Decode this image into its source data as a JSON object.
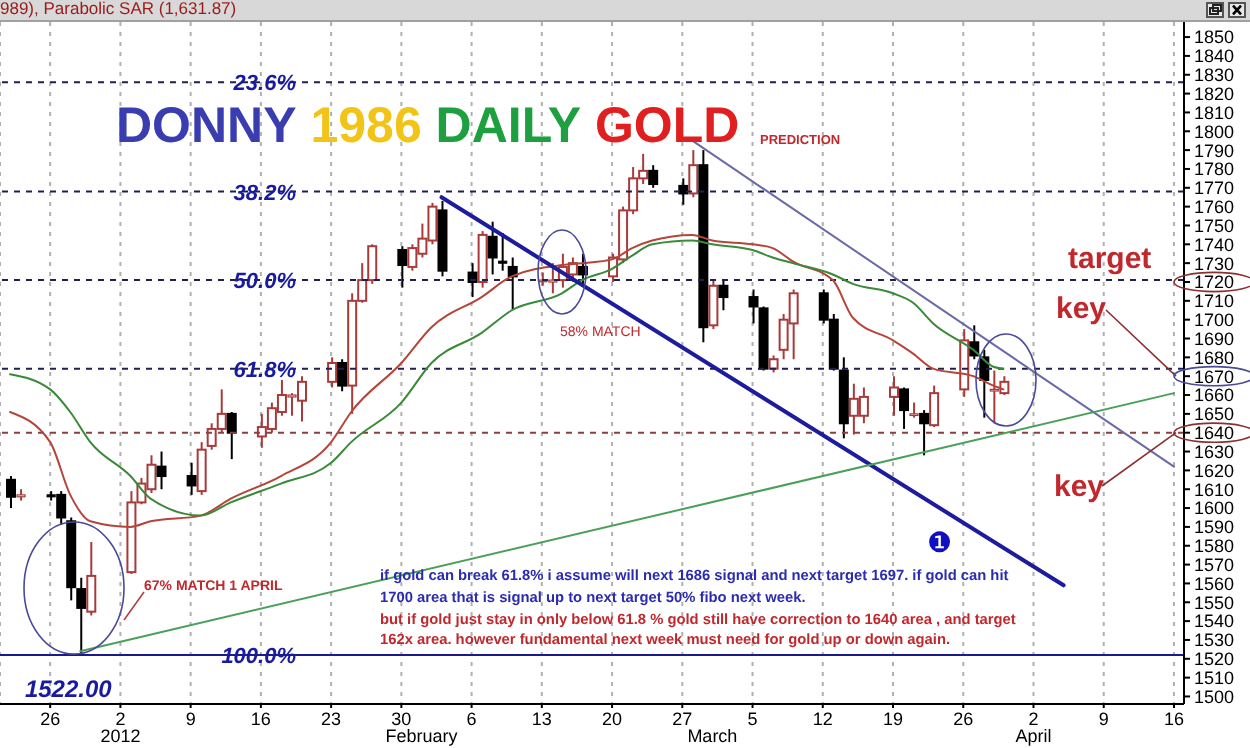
{
  "chart_data": {
    "type": "candlestick",
    "title": "DONNY 1986 DAILY GOLD",
    "annotations": [
      "989), Parabolic SAR (1,631.87)",
      "PREDICTION",
      "67% MATCH 1 APRIL",
      "58% MATCH",
      {
        "text": "target",
        "y": 1720
      },
      {
        "text": "key",
        "y": 1670
      },
      {
        "text": "key",
        "y": 1640
      },
      "if gold can break 61.8% i assume will next 1686 signal and next target 1697. if gold can hit",
      "1700 area that is signal up to next target 50% fibo next week.",
      "but if gold just stay in only below 61.8 % gold still have correction to 1640 area , and target",
      "162x area. however fundamental next week must need for gold up or down again.",
      "❶",
      {
        "text": "1522.00",
        "x": "2011-12-29",
        "y": 1522
      },
      {
        "text": "23.6%",
        "y": 1826
      },
      {
        "text": "38.2%",
        "y": 1768
      },
      {
        "text": "50.0%",
        "y": 1721
      },
      {
        "text": "61.8%",
        "y": 1674
      },
      {
        "text": "100.0%",
        "y": 1522
      }
    ],
    "x": [
      "2011-12-22",
      "2011-12-23",
      "2011-12-26",
      "2011-12-27",
      "2011-12-28",
      "2011-12-29",
      "2011-12-30",
      "2012-01-03",
      "2012-01-04",
      "2012-01-05",
      "2012-01-06",
      "2012-01-09",
      "2012-01-10",
      "2012-01-11",
      "2012-01-12",
      "2012-01-13",
      "2012-01-16",
      "2012-01-17",
      "2012-01-18",
      "2012-01-19",
      "2012-01-20",
      "2012-01-23",
      "2012-01-24",
      "2012-01-25",
      "2012-01-26",
      "2012-01-27",
      "2012-01-30",
      "2012-01-31",
      "2012-02-01",
      "2012-02-02",
      "2012-02-03",
      "2012-02-06",
      "2012-02-07",
      "2012-02-08",
      "2012-02-09",
      "2012-02-10",
      "2012-02-13",
      "2012-02-14",
      "2012-02-15",
      "2012-02-16",
      "2012-02-17",
      "2012-02-20",
      "2012-02-21",
      "2012-02-22",
      "2012-02-23",
      "2012-02-24",
      "2012-02-27",
      "2012-02-28",
      "2012-02-29",
      "2012-03-01",
      "2012-03-02",
      "2012-03-05",
      "2012-03-06",
      "2012-03-07",
      "2012-03-08",
      "2012-03-09",
      "2012-03-12",
      "2012-03-13",
      "2012-03-14",
      "2012-03-15",
      "2012-03-16",
      "2012-03-19",
      "2012-03-20",
      "2012-03-21",
      "2012-03-22",
      "2012-03-23",
      "2012-03-26",
      "2012-03-27",
      "2012-03-28",
      "2012-03-29",
      "2012-03-30"
    ],
    "ohlc": [
      [
        1615,
        1617,
        1600,
        1606
      ],
      [
        1606,
        1610,
        1604,
        1607
      ],
      [
        1607,
        1609,
        1604,
        1606
      ],
      [
        1607,
        1609,
        1591,
        1595
      ],
      [
        1593,
        1595,
        1551,
        1558
      ],
      [
        1557,
        1563,
        1522,
        1547
      ],
      [
        1545,
        1582,
        1543,
        1564
      ],
      [
        1566,
        1609,
        1565,
        1603
      ],
      [
        1603,
        1616,
        1602,
        1613
      ],
      [
        1610,
        1628,
        1608,
        1623
      ],
      [
        1622,
        1630,
        1610,
        1617
      ],
      [
        1617,
        1624,
        1607,
        1612
      ],
      [
        1609,
        1635,
        1607,
        1631
      ],
      [
        1633,
        1645,
        1631,
        1642
      ],
      [
        1642,
        1663,
        1640,
        1650
      ],
      [
        1650,
        1651,
        1626,
        1640
      ],
      [
        1638,
        1650,
        1632,
        1643
      ],
      [
        1642,
        1656,
        1640,
        1653
      ],
      [
        1651,
        1668,
        1649,
        1660
      ],
      [
        1659,
        1661,
        1649,
        1660
      ],
      [
        1657,
        1670,
        1646,
        1667
      ],
      [
        1667,
        1680,
        1664,
        1677
      ],
      [
        1677,
        1679,
        1662,
        1665
      ],
      [
        1665,
        1714,
        1650,
        1710
      ],
      [
        1710,
        1730,
        1709,
        1721
      ],
      [
        1721,
        1740,
        1719,
        1739
      ],
      [
        1737,
        1739,
        1717,
        1729
      ],
      [
        1728,
        1740,
        1726,
        1738
      ],
      [
        1735,
        1751,
        1733,
        1743
      ],
      [
        1742,
        1762,
        1740,
        1760
      ],
      [
        1758,
        1763,
        1723,
        1726
      ],
      [
        1725,
        1730,
        1712,
        1720
      ],
      [
        1720,
        1747,
        1717,
        1745
      ],
      [
        1744,
        1752,
        1724,
        1733
      ],
      [
        1731,
        1746,
        1726,
        1730
      ],
      [
        1728,
        1733,
        1705,
        1723
      ],
      [
        1721,
        1725,
        1718,
        1721
      ],
      [
        1720,
        1730,
        1714,
        1721
      ],
      [
        1721,
        1735,
        1717,
        1728
      ],
      [
        1724,
        1733,
        1720,
        1730
      ],
      [
        1728,
        1735,
        1719,
        1724
      ],
      [
        1723,
        1735,
        1720,
        1733
      ],
      [
        1732,
        1760,
        1730,
        1758
      ],
      [
        1758,
        1781,
        1756,
        1775
      ],
      [
        1775,
        1788,
        1772,
        1779
      ],
      [
        1779,
        1782,
        1770,
        1772
      ],
      [
        1771,
        1775,
        1761,
        1767
      ],
      [
        1767,
        1790,
        1765,
        1782
      ],
      [
        1782,
        1790,
        1688,
        1696
      ],
      [
        1697,
        1721,
        1695,
        1718
      ],
      [
        1718,
        1721,
        1705,
        1712
      ],
      [
        1712,
        1716,
        1698,
        1707
      ],
      [
        1706,
        1707,
        1673,
        1674
      ],
      [
        1674,
        1681,
        1672,
        1679
      ],
      [
        1684,
        1703,
        1679,
        1700
      ],
      [
        1698,
        1716,
        1679,
        1714
      ],
      [
        1714,
        1716,
        1698,
        1700
      ],
      [
        1700,
        1703,
        1673,
        1674
      ],
      [
        1673,
        1680,
        1637,
        1645
      ],
      [
        1649,
        1666,
        1639,
        1658
      ],
      [
        1649,
        1664,
        1645,
        1659
      ],
      [
        1659,
        1670,
        1649,
        1664
      ],
      [
        1663,
        1664,
        1642,
        1652
      ],
      [
        1650,
        1656,
        1648,
        1650
      ],
      [
        1650,
        1652,
        1628,
        1645
      ],
      [
        1644,
        1665,
        1643,
        1661
      ],
      [
        1663,
        1695,
        1659,
        1689
      ],
      [
        1688,
        1697,
        1679,
        1681
      ],
      [
        1680,
        1684,
        1648,
        1668
      ],
      [
        1663,
        1673,
        1645,
        1663
      ],
      [
        1661,
        1670,
        1660,
        1667
      ]
    ],
    "series": [
      {
        "type": "line",
        "color": "#b5453a",
        "x": [
          "2011-12-22",
          "2011-12-26",
          "2011-12-28",
          "2011-12-30",
          "2012-01-03",
          "2012-01-05",
          "2012-01-10",
          "2012-01-13",
          "2012-01-18",
          "2012-01-23",
          "2012-01-25",
          "2012-01-30",
          "2012-02-02",
          "2012-02-07",
          "2012-02-10",
          "2012-02-15",
          "2012-02-17",
          "2012-02-20",
          "2012-02-22",
          "2012-02-24",
          "2012-02-28",
          "2012-03-01",
          "2012-03-05",
          "2012-03-07",
          "2012-03-09",
          "2012-03-13",
          "2012-03-15",
          "2012-03-19",
          "2012-03-21",
          "2012-03-23",
          "2012-03-27",
          "2012-03-29",
          "2012-03-30"
        ],
        "values": [
          1651,
          1635,
          1607,
          1593,
          1590,
          1593,
          1596,
          1605,
          1617,
          1635,
          1651,
          1677,
          1696,
          1712,
          1723,
          1729,
          1730,
          1732,
          1738,
          1742,
          1745,
          1742,
          1740,
          1738,
          1731,
          1721,
          1701,
          1689,
          1682,
          1674,
          1670,
          1665,
          1663
        ]
      },
      {
        "type": "line",
        "color": "#3a8a3a",
        "x": [
          "2011-12-22",
          "2011-12-26",
          "2011-12-28",
          "2011-12-30",
          "2012-01-03",
          "2012-01-05",
          "2012-01-10",
          "2012-01-13",
          "2012-01-18",
          "2012-01-23",
          "2012-01-25",
          "2012-01-30",
          "2012-02-02",
          "2012-02-07",
          "2012-02-10",
          "2012-02-15",
          "2012-02-17",
          "2012-02-20",
          "2012-02-22",
          "2012-02-24",
          "2012-02-28",
          "2012-03-01",
          "2012-03-05",
          "2012-03-07",
          "2012-03-09",
          "2012-03-13",
          "2012-03-15",
          "2012-03-19",
          "2012-03-21",
          "2012-03-23",
          "2012-03-27",
          "2012-03-29",
          "2012-03-30"
        ],
        "values": [
          1671,
          1663,
          1651,
          1635,
          1617,
          1605,
          1596,
          1603,
          1613,
          1624,
          1635,
          1656,
          1677,
          1693,
          1705,
          1714,
          1721,
          1727,
          1734,
          1740,
          1742,
          1740,
          1737,
          1733,
          1730,
          1724,
          1719,
          1714,
          1709,
          1698,
          1684,
          1675,
          1674
        ]
      },
      {
        "type": "line",
        "color": "#1c1c9c",
        "x": [
          "2012-02-03",
          "2012-04-05"
        ],
        "values": [
          1765,
          1559
        ]
      },
      {
        "type": "line",
        "color": "#6a6aa8",
        "x": [
          "2012-02-28",
          "2012-04-16"
        ],
        "values": [
          1795,
          1622
        ]
      },
      {
        "type": "line",
        "color": "#4aa05a",
        "x": [
          "2011-12-29",
          "2012-04-16"
        ],
        "values": [
          1524,
          1661
        ]
      }
    ],
    "ref_lines": [
      {
        "axis": "y",
        "value": 1826,
        "color": "#202050",
        "line_style": "dashed"
      },
      {
        "axis": "y",
        "value": 1768,
        "color": "#202050",
        "line_style": "dashed"
      },
      {
        "axis": "y",
        "value": 1721,
        "color": "#202050",
        "line_style": "dashed"
      },
      {
        "axis": "y",
        "value": 1674,
        "color": "#202050",
        "line_style": "dashed"
      },
      {
        "axis": "y",
        "value": 1522,
        "color": "#1a1a8c",
        "line_style": "solid"
      },
      {
        "axis": "y",
        "value": 1640,
        "color": "#8b4040",
        "line_style": "dashed"
      }
    ],
    "xlim": [
      "2011-12-21",
      "2012-04-17"
    ],
    "xticks": [
      {
        "value": "2011-12-26",
        "label": "26"
      },
      {
        "value": "2012-01-02",
        "label": "2"
      },
      {
        "value": "2012-01-09",
        "label": "9"
      },
      {
        "value": "2012-01-16",
        "label": "16"
      },
      {
        "value": "2012-01-23",
        "label": "23"
      },
      {
        "value": "2012-01-30",
        "label": "30"
      },
      {
        "value": "2012-02-06",
        "label": "6"
      },
      {
        "value": "2012-02-13",
        "label": "13"
      },
      {
        "value": "2012-02-20",
        "label": "20"
      },
      {
        "value": "2012-02-27",
        "label": "27"
      },
      {
        "value": "2012-03-05",
        "label": "5"
      },
      {
        "value": "2012-03-12",
        "label": "12"
      },
      {
        "value": "2012-03-19",
        "label": "19"
      },
      {
        "value": "2012-03-26",
        "label": "26"
      },
      {
        "value": "2012-04-02",
        "label": "2"
      },
      {
        "value": "2012-04-09",
        "label": "9"
      },
      {
        "value": "2012-04-16",
        "label": "16"
      }
    ],
    "x2lim": [
      "2011-12-21",
      "2012-04-17"
    ],
    "x2ticks": [
      {
        "value": "2012-01-02",
        "label": "2012"
      },
      {
        "value": "2012-02-01",
        "label": "February"
      },
      {
        "value": "2012-03-01",
        "label": "March"
      },
      {
        "value": "2012-04-02",
        "label": "April"
      }
    ],
    "ylim": [
      1496,
      1858
    ],
    "yticks": [
      1500,
      1510,
      1520,
      1530,
      1540,
      1550,
      1560,
      1570,
      1580,
      1590,
      1600,
      1610,
      1620,
      1630,
      1640,
      1650,
      1660,
      1670,
      1680,
      1690,
      1700,
      1710,
      1720,
      1730,
      1740,
      1750,
      1760,
      1770,
      1780,
      1790,
      1800,
      1810,
      1820,
      1830,
      1840,
      1850
    ],
    "grid": "x"
  }
}
